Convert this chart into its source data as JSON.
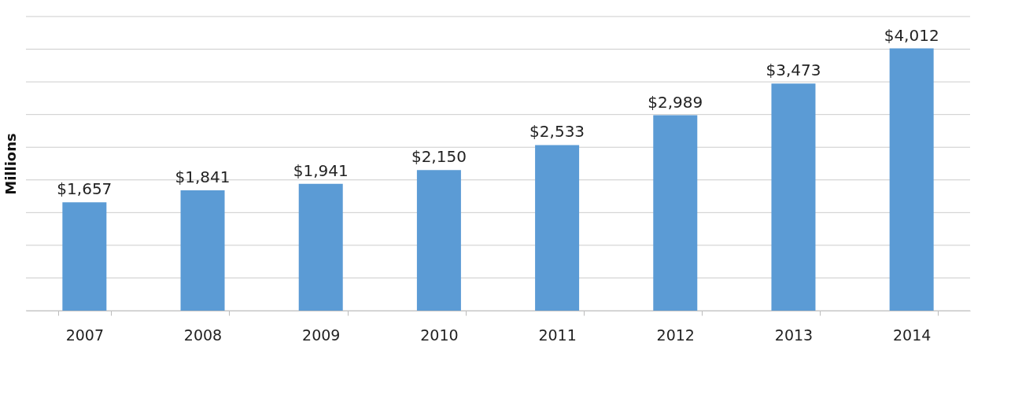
{
  "chart_data": {
    "type": "bar",
    "ylabel": "Millions",
    "categories": [
      "2007",
      "2008",
      "2009",
      "2010",
      "2011",
      "2012",
      "2013",
      "2014"
    ],
    "values": [
      1657,
      1841,
      1941,
      2150,
      2533,
      2989,
      3473,
      4012
    ],
    "color": "#5b9bd5",
    "value_labels": [
      "$1,657",
      "$1,841",
      "$1,941",
      "$2,150",
      "$2,533",
      "$2,989",
      "$3,473",
      "$4,012"
    ],
    "ylim": [
      0,
      4500
    ],
    "yticks": [
      {
        "value": 0,
        "label": null
      },
      {
        "value": 500,
        "label": null
      },
      {
        "value": 1000,
        "label": null
      },
      {
        "value": 1500,
        "label": null
      },
      {
        "value": 2000,
        "label": null
      },
      {
        "value": 2500,
        "label": null
      },
      {
        "value": 3000,
        "label": null
      },
      {
        "value": 3500,
        "label": null
      },
      {
        "value": 4000,
        "label": null
      },
      {
        "value": 4500,
        "label": null
      }
    ],
    "grid": "y",
    "tick_labels": "x"
  }
}
